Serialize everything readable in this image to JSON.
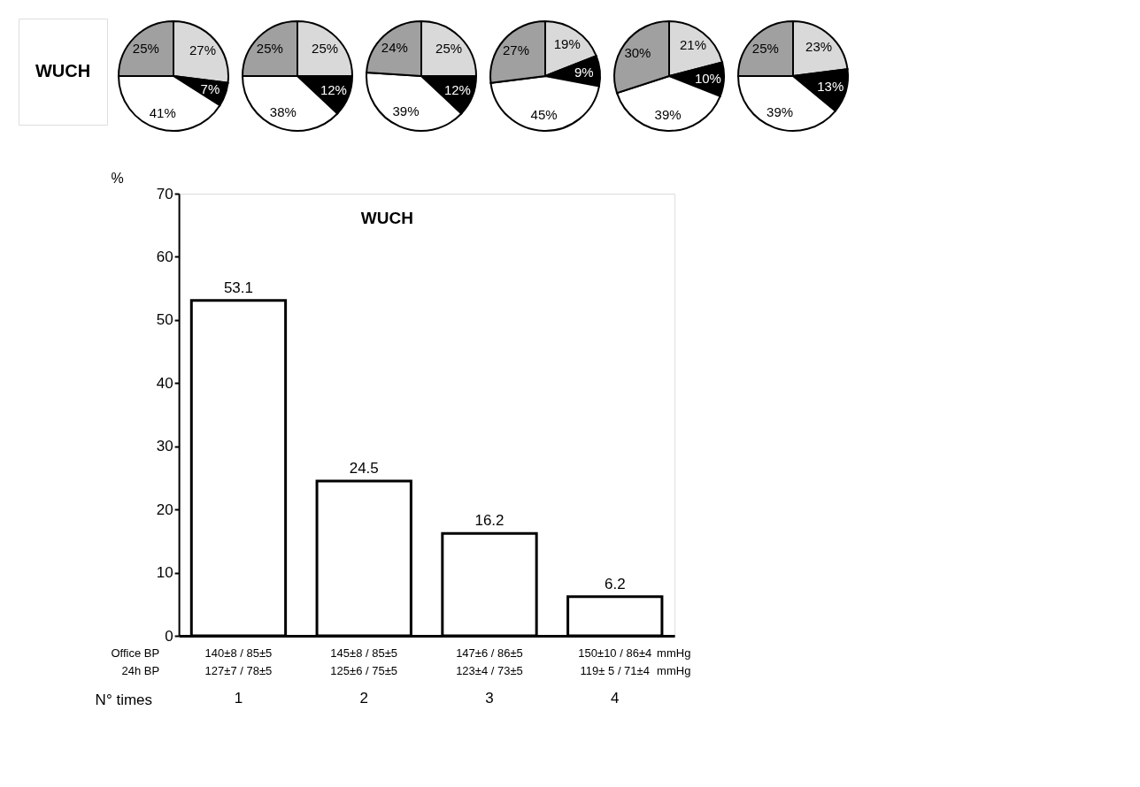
{
  "chart_data": [
    {
      "type": "other",
      "title": "WUCH"
    },
    {
      "type": "pie",
      "categories": [
        null,
        null,
        null,
        null
      ],
      "values": [
        27,
        7,
        41,
        25
      ],
      "colors": [
        "#d9d9d9",
        "#000000",
        "#ffffff",
        "#a0a0a0"
      ],
      "value_labels": [
        "27%",
        "7%",
        "41%",
        "25%"
      ]
    },
    {
      "type": "pie",
      "categories": [
        null,
        null,
        null,
        null
      ],
      "values": [
        25,
        12,
        38,
        25
      ],
      "colors": [
        "#d9d9d9",
        "#000000",
        "#ffffff",
        "#a0a0a0"
      ],
      "value_labels": [
        "25%",
        "12%",
        "38%",
        "25%"
      ]
    },
    {
      "type": "pie",
      "categories": [
        null,
        null,
        null,
        null
      ],
      "values": [
        25,
        12,
        39,
        24
      ],
      "colors": [
        "#d9d9d9",
        "#000000",
        "#ffffff",
        "#a0a0a0"
      ],
      "value_labels": [
        "25%",
        "12%",
        "39%",
        "24%"
      ]
    },
    {
      "type": "pie",
      "categories": [
        null,
        null,
        null,
        null
      ],
      "values": [
        19,
        9,
        45,
        27
      ],
      "colors": [
        "#d9d9d9",
        "#000000",
        "#ffffff",
        "#a0a0a0"
      ],
      "value_labels": [
        "19%",
        "9%",
        "45%",
        "27%"
      ]
    },
    {
      "type": "pie",
      "categories": [
        null,
        null,
        null,
        null
      ],
      "values": [
        21,
        10,
        39,
        30
      ],
      "colors": [
        "#d9d9d9",
        "#000000",
        "#ffffff",
        "#a0a0a0"
      ],
      "value_labels": [
        "21%",
        "10%",
        "39%",
        "30%"
      ]
    },
    {
      "type": "pie",
      "categories": [
        null,
        null,
        null,
        null
      ],
      "values": [
        23,
        13,
        39,
        25
      ],
      "colors": [
        "#d9d9d9",
        "#000000",
        "#ffffff",
        "#a0a0a0"
      ],
      "value_labels": [
        "23%",
        "13%",
        "39%",
        "25%"
      ]
    },
    {
      "type": "bar",
      "title": "WUCH",
      "ylabel": "%",
      "xlabel": "N° times",
      "categories": [
        "1",
        "2",
        "3",
        "4"
      ],
      "values": [
        53.1,
        24.5,
        16.2,
        6.2
      ],
      "color": "#ffffff",
      "ylim": [
        0,
        70
      ],
      "yticks": [
        0,
        10,
        20,
        30,
        40,
        50,
        60,
        70
      ],
      "data_labels": true,
      "grid": false,
      "annotations": [
        "Office BP",
        "140±8 / 85±5",
        "145±8 / 85±5",
        "147±6 / 86±5",
        "150±10 / 86±4",
        "mmHg",
        "24h BP",
        "127±7 / 78±5",
        "125±6 / 75±5",
        "123±4 / 73±5",
        "119±  5 / 71±4",
        "mmHg"
      ]
    }
  ]
}
